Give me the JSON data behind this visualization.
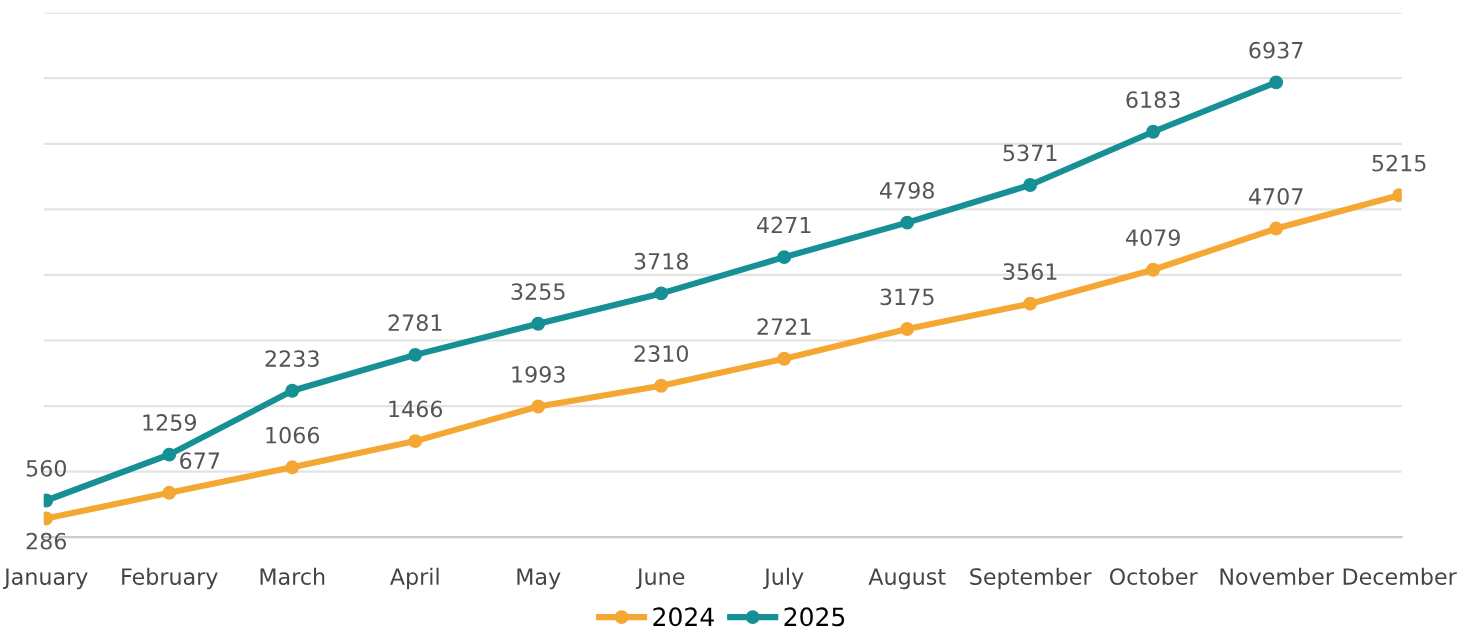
{
  "chart_data": {
    "type": "line",
    "categories": [
      "January",
      "February",
      "March",
      "April",
      "May",
      "June",
      "July",
      "August",
      "September",
      "October",
      "November",
      "December"
    ],
    "series": [
      {
        "name": "2024",
        "color": "#f5a733",
        "values": [
          286,
          677,
          1066,
          1466,
          1993,
          2310,
          2721,
          3175,
          3561,
          4079,
          4707,
          5215
        ]
      },
      {
        "name": "2025",
        "color": "#168f95",
        "values": [
          560,
          1259,
          2233,
          2781,
          3255,
          3718,
          4271,
          4798,
          5371,
          6183,
          6937,
          null
        ]
      }
    ],
    "ylim": [
      0,
      8000
    ],
    "yticks": [
      0,
      1000,
      2000,
      3000,
      4000,
      5000,
      6000,
      7000,
      8000
    ],
    "tick_labels": "x",
    "grid": "y",
    "legend": "bottom",
    "marker": "circle",
    "line_style": "solid",
    "data_labels": true
  }
}
